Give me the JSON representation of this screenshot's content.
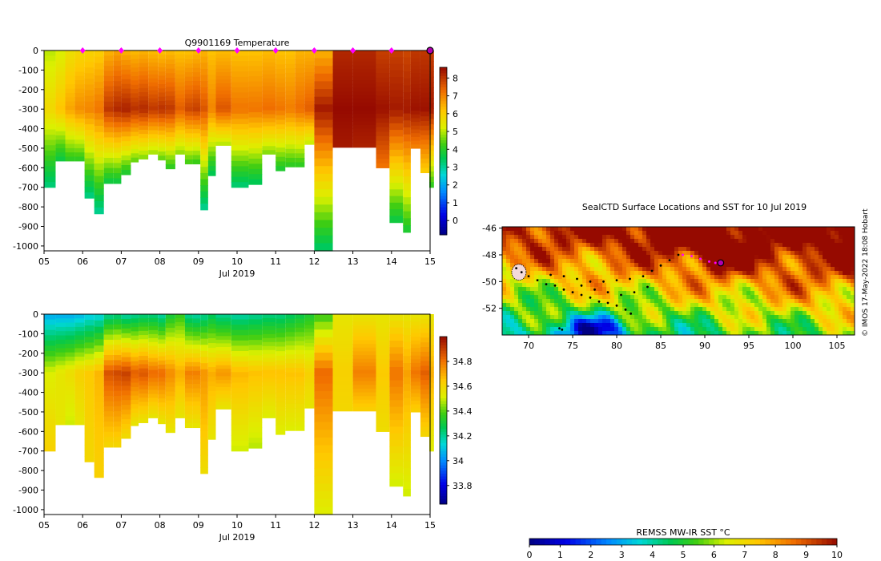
{
  "chart_data": [
    {
      "type": "heatmap",
      "title": "Q9901169  Temperature",
      "xlabel": "Jul 2019",
      "ylabel": "",
      "xlim": [
        5,
        15
      ],
      "ylim": [
        -1025,
        0
      ],
      "x_ticks": [
        "05",
        "06",
        "07",
        "08",
        "09",
        "10",
        "11",
        "12",
        "13",
        "14",
        "15"
      ],
      "y_ticks": [
        "0",
        "-100",
        "-200",
        "-300",
        "-400",
        "-500",
        "-600",
        "-700",
        "-800",
        "-900",
        "-1000"
      ],
      "colorbar": {
        "range": [
          -0.8,
          8.6
        ],
        "ticks": [
          "0",
          "1",
          "2",
          "3",
          "4",
          "5",
          "6",
          "7",
          "8"
        ]
      },
      "profile_markers_x": [
        6,
        7,
        8,
        9,
        10,
        11,
        12,
        13,
        14
      ],
      "current_position_x": 15,
      "profiles": [
        {
          "x0": 5.0,
          "x1": 5.3,
          "depth": 700,
          "surf": 5.0,
          "max": 5.8,
          "deep": 3.2
        },
        {
          "x0": 5.3,
          "x1": 5.55,
          "depth": 565,
          "surf": 5.2,
          "max": 6.2,
          "deep": 3.6
        },
        {
          "x0": 5.55,
          "x1": 5.8,
          "depth": 565,
          "surf": 5.6,
          "max": 6.6,
          "deep": 4.0
        },
        {
          "x0": 5.8,
          "x1": 6.05,
          "depth": 565,
          "surf": 5.8,
          "max": 6.9,
          "deep": 4.0
        },
        {
          "x0": 6.05,
          "x1": 6.3,
          "depth": 755,
          "surf": 5.9,
          "max": 7.0,
          "deep": 3.1
        },
        {
          "x0": 6.3,
          "x1": 6.55,
          "depth": 835,
          "surf": 6.0,
          "max": 7.2,
          "deep": 3.0
        },
        {
          "x0": 6.55,
          "x1": 6.8,
          "depth": 680,
          "surf": 6.4,
          "max": 8.0,
          "deep": 3.6
        },
        {
          "x0": 6.8,
          "x1": 7.0,
          "depth": 680,
          "surf": 6.6,
          "max": 8.2,
          "deep": 3.6
        },
        {
          "x0": 7.0,
          "x1": 7.25,
          "depth": 635,
          "surf": 6.4,
          "max": 8.3,
          "deep": 3.8
        },
        {
          "x0": 7.25,
          "x1": 7.45,
          "depth": 570,
          "surf": 6.3,
          "max": 8.1,
          "deep": 4.4
        },
        {
          "x0": 7.45,
          "x1": 7.7,
          "depth": 555,
          "surf": 6.4,
          "max": 8.2,
          "deep": 4.6
        },
        {
          "x0": 7.7,
          "x1": 7.95,
          "depth": 530,
          "surf": 6.3,
          "max": 8.0,
          "deep": 4.8
        },
        {
          "x0": 7.95,
          "x1": 8.15,
          "depth": 560,
          "surf": 6.2,
          "max": 8.1,
          "deep": 4.4
        },
        {
          "x0": 8.15,
          "x1": 8.4,
          "depth": 605,
          "surf": 6.3,
          "max": 8.0,
          "deep": 4.0
        },
        {
          "x0": 8.4,
          "x1": 8.65,
          "depth": 530,
          "surf": 6.2,
          "max": 7.5,
          "deep": 4.7
        },
        {
          "x0": 8.65,
          "x1": 8.85,
          "depth": 580,
          "surf": 6.2,
          "max": 7.8,
          "deep": 4.2
        },
        {
          "x0": 8.85,
          "x1": 9.05,
          "depth": 580,
          "surf": 6.3,
          "max": 7.9,
          "deep": 4.1
        },
        {
          "x0": 9.05,
          "x1": 9.25,
          "depth": 815,
          "surf": 6.4,
          "max": 7.6,
          "deep": 3.0
        },
        {
          "x0": 9.25,
          "x1": 9.45,
          "depth": 640,
          "surf": 6.2,
          "max": 7.0,
          "deep": 3.4
        },
        {
          "x0": 9.45,
          "x1": 9.85,
          "depth": 485,
          "surf": 6.3,
          "max": 7.6,
          "deep": 4.9
        },
        {
          "x0": 9.85,
          "x1": 10.3,
          "depth": 700,
          "surf": 6.2,
          "max": 7.2,
          "deep": 3.2
        },
        {
          "x0": 10.3,
          "x1": 10.65,
          "depth": 685,
          "surf": 6.2,
          "max": 7.2,
          "deep": 3.4
        },
        {
          "x0": 10.65,
          "x1": 11.0,
          "depth": 530,
          "surf": 6.3,
          "max": 7.3,
          "deep": 4.6
        },
        {
          "x0": 11.0,
          "x1": 11.25,
          "depth": 615,
          "surf": 6.2,
          "max": 7.2,
          "deep": 3.8
        },
        {
          "x0": 11.25,
          "x1": 11.5,
          "depth": 595,
          "surf": 6.2,
          "max": 7.1,
          "deep": 4.0
        },
        {
          "x0": 11.5,
          "x1": 11.75,
          "depth": 595,
          "surf": 6.4,
          "max": 7.3,
          "deep": 4.0
        },
        {
          "x0": 11.75,
          "x1": 12.0,
          "depth": 480,
          "surf": 6.4,
          "max": 7.5,
          "deep": 5.0
        },
        {
          "x0": 12.0,
          "x1": 12.48,
          "depth": 1025,
          "surf": 6.4,
          "max": 8.4,
          "deep": 3.3
        },
        {
          "x0": 12.48,
          "x1": 13.0,
          "depth": 495,
          "surf": 8.2,
          "max": 8.6,
          "deep": 8.4
        },
        {
          "x0": 13.0,
          "x1": 13.6,
          "depth": 495,
          "surf": 8.2,
          "max": 8.6,
          "deep": 8.3
        },
        {
          "x0": 13.6,
          "x1": 13.95,
          "depth": 600,
          "surf": 7.9,
          "max": 8.5,
          "deep": 7.2
        },
        {
          "x0": 13.95,
          "x1": 14.3,
          "depth": 880,
          "surf": 7.9,
          "max": 8.4,
          "deep": 3.6
        },
        {
          "x0": 14.3,
          "x1": 14.5,
          "depth": 930,
          "surf": 7.8,
          "max": 8.4,
          "deep": 3.8
        },
        {
          "x0": 14.5,
          "x1": 14.75,
          "depth": 500,
          "surf": 8.0,
          "max": 8.5,
          "deep": 7.0
        },
        {
          "x0": 14.75,
          "x1": 14.98,
          "depth": 625,
          "surf": 8.0,
          "max": 8.5,
          "deep": 6.0
        },
        {
          "x0": 14.98,
          "x1": 15.1,
          "depth": 700,
          "surf": 7.9,
          "max": 8.4,
          "deep": 4.0
        }
      ]
    },
    {
      "type": "heatmap",
      "title": "",
      "xlabel": "Jul 2019",
      "ylabel": "",
      "xlim": [
        5,
        15
      ],
      "ylim": [
        -1025,
        0
      ],
      "x_ticks": [
        "05",
        "06",
        "07",
        "08",
        "09",
        "10",
        "11",
        "12",
        "13",
        "14",
        "15"
      ],
      "y_ticks": [
        "0",
        "-100",
        "-200",
        "-300",
        "-400",
        "-500",
        "-600",
        "-700",
        "-800",
        "-900",
        "-1000"
      ],
      "colorbar": {
        "range": [
          33.65,
          35.0
        ],
        "ticks": [
          "33.8",
          "34",
          "34.2",
          "34.4",
          "34.6",
          "34.8"
        ]
      },
      "profiles": [
        {
          "x0": 5.0,
          "x1": 5.3,
          "depth": 700,
          "surf": 34.05,
          "max": 34.52,
          "deep": 34.62
        },
        {
          "x0": 5.3,
          "x1": 5.55,
          "depth": 565,
          "surf": 34.05,
          "max": 34.55,
          "deep": 34.55
        },
        {
          "x0": 5.55,
          "x1": 5.8,
          "depth": 565,
          "surf": 34.05,
          "max": 34.58,
          "deep": 34.5
        },
        {
          "x0": 5.8,
          "x1": 6.05,
          "depth": 565,
          "surf": 34.07,
          "max": 34.62,
          "deep": 34.55
        },
        {
          "x0": 6.05,
          "x1": 6.3,
          "depth": 755,
          "surf": 34.1,
          "max": 34.64,
          "deep": 34.6
        },
        {
          "x0": 6.3,
          "x1": 6.55,
          "depth": 835,
          "surf": 34.12,
          "max": 34.68,
          "deep": 34.62
        },
        {
          "x0": 6.55,
          "x1": 6.8,
          "depth": 680,
          "surf": 34.2,
          "max": 34.86,
          "deep": 34.6
        },
        {
          "x0": 6.8,
          "x1": 7.0,
          "depth": 680,
          "surf": 34.22,
          "max": 34.88,
          "deep": 34.6
        },
        {
          "x0": 7.0,
          "x1": 7.25,
          "depth": 635,
          "surf": 34.18,
          "max": 34.9,
          "deep": 34.58
        },
        {
          "x0": 7.25,
          "x1": 7.45,
          "depth": 570,
          "surf": 34.2,
          "max": 34.84,
          "deep": 34.55
        },
        {
          "x0": 7.45,
          "x1": 7.7,
          "depth": 555,
          "surf": 34.22,
          "max": 34.86,
          "deep": 34.55
        },
        {
          "x0": 7.7,
          "x1": 7.95,
          "depth": 530,
          "surf": 34.22,
          "max": 34.82,
          "deep": 34.55
        },
        {
          "x0": 7.95,
          "x1": 8.15,
          "depth": 560,
          "surf": 34.18,
          "max": 34.82,
          "deep": 34.55
        },
        {
          "x0": 8.15,
          "x1": 8.4,
          "depth": 605,
          "surf": 34.3,
          "max": 34.76,
          "deep": 34.55
        },
        {
          "x0": 8.4,
          "x1": 8.65,
          "depth": 530,
          "surf": 34.35,
          "max": 34.7,
          "deep": 34.55
        },
        {
          "x0": 8.65,
          "x1": 8.85,
          "depth": 580,
          "surf": 34.2,
          "max": 34.78,
          "deep": 34.55
        },
        {
          "x0": 8.85,
          "x1": 9.05,
          "depth": 580,
          "surf": 34.18,
          "max": 34.78,
          "deep": 34.55
        },
        {
          "x0": 9.05,
          "x1": 9.25,
          "depth": 815,
          "surf": 34.2,
          "max": 34.74,
          "deep": 34.58
        },
        {
          "x0": 9.25,
          "x1": 9.45,
          "depth": 640,
          "surf": 34.25,
          "max": 34.7,
          "deep": 34.55
        },
        {
          "x0": 9.45,
          "x1": 9.85,
          "depth": 485,
          "surf": 34.2,
          "max": 34.74,
          "deep": 34.55
        },
        {
          "x0": 9.85,
          "x1": 10.3,
          "depth": 700,
          "surf": 34.18,
          "max": 34.68,
          "deep": 34.5
        },
        {
          "x0": 10.3,
          "x1": 10.65,
          "depth": 685,
          "surf": 34.2,
          "max": 34.66,
          "deep": 34.48
        },
        {
          "x0": 10.65,
          "x1": 11.0,
          "depth": 530,
          "surf": 34.22,
          "max": 34.66,
          "deep": 34.52
        },
        {
          "x0": 11.0,
          "x1": 11.25,
          "depth": 615,
          "surf": 34.22,
          "max": 34.66,
          "deep": 34.52
        },
        {
          "x0": 11.25,
          "x1": 11.5,
          "depth": 595,
          "surf": 34.25,
          "max": 34.66,
          "deep": 34.52
        },
        {
          "x0": 11.5,
          "x1": 11.75,
          "depth": 595,
          "surf": 34.28,
          "max": 34.66,
          "deep": 34.52
        },
        {
          "x0": 11.75,
          "x1": 12.0,
          "depth": 480,
          "surf": 34.32,
          "max": 34.62,
          "deep": 34.55
        },
        {
          "x0": 12.0,
          "x1": 12.48,
          "depth": 1025,
          "surf": 34.36,
          "max": 34.82,
          "deep": 34.52
        },
        {
          "x0": 12.48,
          "x1": 13.0,
          "depth": 495,
          "surf": 34.55,
          "max": 34.62,
          "deep": 34.6
        },
        {
          "x0": 13.0,
          "x1": 13.6,
          "depth": 495,
          "surf": 34.55,
          "max": 34.78,
          "deep": 34.62
        },
        {
          "x0": 13.6,
          "x1": 13.95,
          "depth": 600,
          "surf": 34.55,
          "max": 34.64,
          "deep": 34.58
        },
        {
          "x0": 13.95,
          "x1": 14.3,
          "depth": 880,
          "surf": 34.55,
          "max": 34.8,
          "deep": 34.5
        },
        {
          "x0": 14.3,
          "x1": 14.5,
          "depth": 930,
          "surf": 34.55,
          "max": 34.72,
          "deep": 34.5
        },
        {
          "x0": 14.5,
          "x1": 14.75,
          "depth": 500,
          "surf": 34.55,
          "max": 34.8,
          "deep": 34.62
        },
        {
          "x0": 14.75,
          "x1": 14.98,
          "depth": 625,
          "surf": 34.55,
          "max": 34.84,
          "deep": 34.6
        },
        {
          "x0": 14.98,
          "x1": 15.1,
          "depth": 700,
          "surf": 34.55,
          "max": 34.7,
          "deep": 34.52
        }
      ]
    },
    {
      "type": "scatter",
      "title": "SealCTD Surface Locations and SST for 10 Jul 2019",
      "xlabel": "",
      "ylabel": "",
      "xlim": [
        67,
        107
      ],
      "ylim": [
        -54.0,
        -45.9
      ],
      "x_ticks": [
        "70",
        "75",
        "80",
        "85",
        "90",
        "95",
        "100",
        "105"
      ],
      "y_ticks": [
        "-46",
        "-48",
        "-50",
        "-52"
      ],
      "credit": "© IMOS 17-May-2022 18:08 Hobart",
      "colorbar": {
        "label": "REMSS MW-IR SST °C",
        "range": [
          0,
          10
        ],
        "ticks": [
          "0",
          "1",
          "2",
          "3",
          "4",
          "5",
          "6",
          "7",
          "8",
          "9",
          "10"
        ]
      },
      "track_points": [
        [
          68.6,
          -49.0
        ],
        [
          69.2,
          -49.3
        ],
        [
          70.0,
          -49.6
        ],
        [
          71.0,
          -49.9
        ],
        [
          72.0,
          -50.2
        ],
        [
          73.0,
          -50.3
        ],
        [
          74.0,
          -50.6
        ],
        [
          75.0,
          -50.8
        ],
        [
          76.0,
          -51.0
        ],
        [
          77.0,
          -51.2
        ],
        [
          78.0,
          -51.5
        ],
        [
          79.0,
          -51.6
        ],
        [
          80.0,
          -51.8
        ],
        [
          81.0,
          -52.1
        ],
        [
          81.6,
          -52.4
        ],
        [
          72.5,
          -49.5
        ],
        [
          74.0,
          -49.6
        ],
        [
          75.5,
          -49.8
        ],
        [
          77.0,
          -50.0
        ],
        [
          78.5,
          -50.0
        ],
        [
          80.0,
          -49.9
        ],
        [
          81.5,
          -49.8
        ],
        [
          83.0,
          -49.6
        ],
        [
          84.0,
          -49.2
        ],
        [
          85.0,
          -48.8
        ],
        [
          86.0,
          -48.4
        ],
        [
          87.0,
          -48.0
        ],
        [
          76.0,
          -50.3
        ],
        [
          77.5,
          -50.6
        ],
        [
          79.0,
          -50.8
        ],
        [
          80.5,
          -51.0
        ],
        [
          82.0,
          -50.8
        ],
        [
          83.5,
          -50.4
        ],
        [
          73.5,
          -53.5
        ],
        [
          73.8,
          -53.6
        ]
      ],
      "recent_track_points": [
        [
          87.5,
          -48.0
        ],
        [
          88.5,
          -48.1
        ],
        [
          89.5,
          -48.3
        ],
        [
          90.5,
          -48.5
        ],
        [
          91.2,
          -48.6
        ]
      ],
      "current_location": [
        91.8,
        -48.6
      ]
    }
  ]
}
